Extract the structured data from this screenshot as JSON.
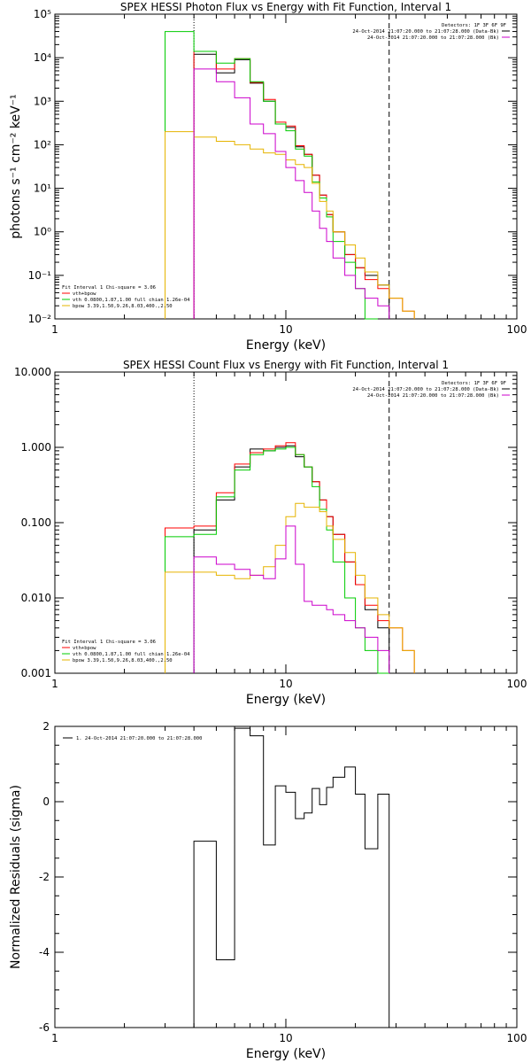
{
  "colors": {
    "data": "#000000",
    "total": "#ff0000",
    "vth": "#00cc00",
    "bpow": "#e6b400",
    "bk": "#cc00cc"
  },
  "chart_data": [
    {
      "type": "line",
      "title": "SPEX HESSI Photon Flux vs Energy with Fit Function, Interval 1",
      "xlabel": "Energy (keV)",
      "ylabel": "photons s⁻¹ cm⁻² keV⁻¹",
      "xscale": "log",
      "yscale": "log",
      "xlim": [
        1,
        100
      ],
      "ylim": [
        0.01,
        100000
      ],
      "x_ticks": [
        "1",
        "10",
        "100"
      ],
      "y_ticks": [
        "10⁻²",
        "10⁻¹",
        "10⁰",
        "10¹",
        "10²",
        "10³",
        "10⁴",
        "10⁵"
      ],
      "fit_range": [
        4,
        28
      ],
      "legend_top": {
        "header": "Detectors: 1F 3F 6F 9F",
        "lines": [
          "24-Oct-2014 21:07:20.000 to 21:07:28.000 (Data-Bk)",
          "24-Oct-2014 21:07:20.000 to 21:07:28.000 (Bk)"
        ]
      },
      "legend_fit": {
        "header": "Fit Interval  1    Chi-square = 3.06",
        "lines": [
          "vth+bpow",
          "vth 0.0800,1.87,1.00  full chian 1.26e-04",
          "bpow 3.39,1.50,9.26,8.03,400.,2.50"
        ]
      },
      "energy_edges": [
        3.0,
        4.0,
        5.0,
        6.0,
        7.0,
        8.0,
        9.0,
        10.0,
        11.0,
        12.0,
        13.0,
        14.0,
        15.0,
        16.0,
        18.0,
        20.0,
        22.0,
        25.0,
        28.0,
        32.0,
        36.0,
        40.0
      ],
      "series": [
        {
          "name": "Data-Bk",
          "color_key": "data",
          "values": [
            null,
            12000,
            4500,
            9000,
            2600,
            1000,
            300,
            250,
            90,
            60,
            20,
            7,
            2.5,
            1,
            0.3,
            0.15,
            0.1,
            0.06,
            null,
            null,
            null
          ]
        },
        {
          "name": "vth+bpow",
          "color_key": "total",
          "values": [
            null,
            14000,
            5500,
            9500,
            2700,
            1100,
            330,
            270,
            95,
            60,
            20,
            7,
            2.5,
            1,
            0.3,
            0.15,
            0.08,
            0.05,
            0.03,
            0.015,
            null
          ]
        },
        {
          "name": "vth",
          "color_key": "vth",
          "values": [
            40000,
            14000,
            7500,
            9500,
            2800,
            1000,
            300,
            210,
            80,
            55,
            14,
            6,
            2.2,
            0.6,
            0.2,
            0.05,
            0.01,
            null,
            null,
            null,
            null
          ]
        },
        {
          "name": "bpow",
          "color_key": "bpow",
          "values": [
            200,
            150,
            120,
            100,
            80,
            65,
            60,
            45,
            35,
            30,
            13,
            5,
            3,
            1,
            0.5,
            0.25,
            0.12,
            0.06,
            0.03,
            0.015,
            null
          ]
        },
        {
          "name": "Bk",
          "color_key": "bk",
          "values": [
            null,
            5500,
            2800,
            1200,
            300,
            180,
            70,
            30,
            15,
            8,
            3,
            1.2,
            0.6,
            0.25,
            0.1,
            0.05,
            0.03,
            0.02,
            null,
            null,
            null
          ]
        }
      ]
    },
    {
      "type": "line",
      "title": "SPEX HESSI Count Flux vs Energy with Fit Function, Interval 1",
      "xlabel": "Energy (keV)",
      "ylabel": "",
      "xscale": "log",
      "yscale": "log",
      "xlim": [
        1,
        100
      ],
      "ylim": [
        0.001,
        10
      ],
      "x_ticks": [
        "1",
        "10",
        "100"
      ],
      "y_ticks": [
        "0.001",
        "0.010",
        "0.100",
        "1.000",
        "10.000"
      ],
      "fit_range": [
        4,
        28
      ],
      "legend_top": {
        "header": "Detectors: 1F 3F 6F 9F",
        "lines": [
          "24-Oct-2014 21:07:20.000 to 21:07:28.000 (Data-Bk)",
          "24-Oct-2014 21:07:20.000 to 21:07:28.000 (Bk)"
        ]
      },
      "legend_fit": {
        "header": "Fit Interval  1    Chi-square = 3.06",
        "lines": [
          "vth+bpow",
          "vth 0.0800,1.87,1.00  full chian 1.26e-04",
          "bpow 3.39,1.50,9.26,8.03,400.,2.50"
        ]
      },
      "energy_edges": [
        3.0,
        4.0,
        5.0,
        6.0,
        7.0,
        8.0,
        9.0,
        10.0,
        11.0,
        12.0,
        13.0,
        14.0,
        15.0,
        16.0,
        18.0,
        20.0,
        22.0,
        25.0,
        28.0,
        32.0,
        36.0,
        40.0
      ],
      "series": [
        {
          "name": "Data-Bk",
          "color_key": "data",
          "values": [
            null,
            0.08,
            0.2,
            0.55,
            0.95,
            0.9,
            1.0,
            1.05,
            0.75,
            0.55,
            0.35,
            0.2,
            0.12,
            0.07,
            0.03,
            0.015,
            0.007,
            0.004,
            null,
            null,
            null
          ]
        },
        {
          "name": "vth+bpow",
          "color_key": "total",
          "values": [
            0.085,
            0.09,
            0.25,
            0.6,
            0.85,
            0.95,
            1.05,
            1.15,
            0.8,
            0.55,
            0.35,
            0.2,
            0.12,
            0.07,
            0.03,
            0.015,
            0.008,
            0.005,
            0.004,
            0.002,
            null
          ]
        },
        {
          "name": "vth",
          "color_key": "vth",
          "values": [
            0.065,
            0.07,
            0.22,
            0.5,
            0.8,
            0.9,
            0.95,
            1.0,
            0.8,
            0.55,
            0.3,
            0.15,
            0.08,
            0.03,
            0.01,
            0.004,
            0.002,
            0.001,
            null,
            null,
            null
          ]
        },
        {
          "name": "bpow",
          "color_key": "bpow",
          "values": [
            0.022,
            0.022,
            0.02,
            0.018,
            0.02,
            0.026,
            0.05,
            0.12,
            0.18,
            0.16,
            0.16,
            0.14,
            0.09,
            0.06,
            0.04,
            0.02,
            0.01,
            0.006,
            0.004,
            0.002,
            null
          ]
        },
        {
          "name": "Bk",
          "color_key": "bk",
          "values": [
            null,
            0.035,
            0.028,
            0.024,
            0.02,
            0.018,
            0.033,
            0.09,
            0.028,
            0.009,
            0.008,
            0.008,
            0.007,
            0.006,
            0.005,
            0.004,
            0.003,
            0.002,
            null,
            null,
            null
          ]
        }
      ]
    },
    {
      "type": "line",
      "title": "",
      "xlabel": "Energy (keV)",
      "ylabel": "Normalized Residuals (sigma)",
      "xscale": "log",
      "yscale": "linear",
      "xlim": [
        1,
        100
      ],
      "ylim": [
        -6,
        2
      ],
      "x_ticks": [
        "1",
        "10",
        "100"
      ],
      "y_ticks": [
        "-6",
        "-4",
        "-2",
        "0",
        "2"
      ],
      "legend": "1. 24-Oct-2014 21:07:20.000 to 21:07:28.000",
      "energy_edges": [
        4.0,
        5.0,
        6.0,
        7.0,
        8.0,
        9.0,
        10.0,
        11.0,
        12.0,
        13.0,
        14.0,
        15.0,
        16.0,
        18.0,
        20.0,
        22.0,
        25.0,
        28.0
      ],
      "series": [
        {
          "name": "",
          "color_key": "data",
          "values": [
            -1.05,
            -4.2,
            1.95,
            1.75,
            -1.15,
            0.42,
            0.25,
            -0.45,
            -0.3,
            0.35,
            -0.08,
            0.38,
            0.65,
            0.92,
            0.2,
            -1.25,
            0.2
          ]
        }
      ]
    }
  ]
}
